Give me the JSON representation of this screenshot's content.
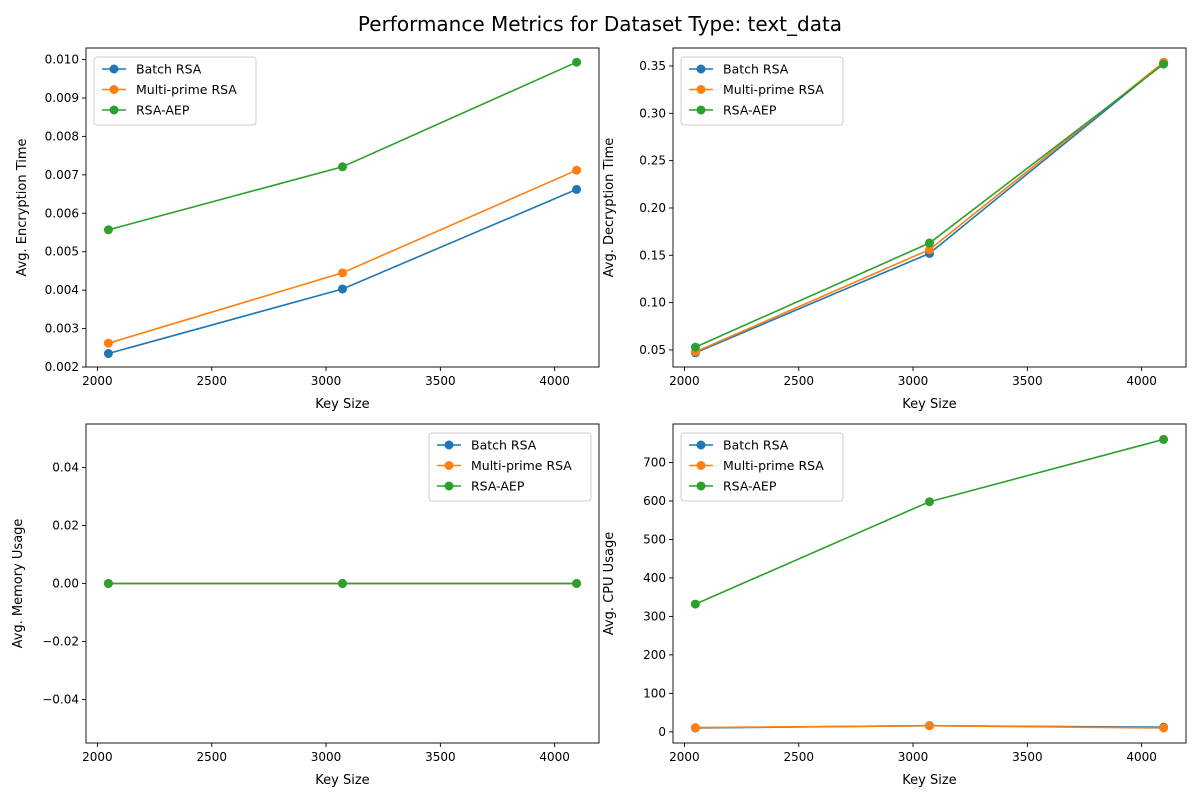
{
  "figure_title": "Performance Metrics for Dataset Type: text_data",
  "colors": {
    "Batch RSA": "#1f77b4",
    "Multi-prime RSA": "#ff7f0e",
    "RSA-AEP": "#2ca02c"
  },
  "chart_data": [
    {
      "type": "line",
      "xlabel": "Key Size",
      "ylabel": "Avg. Encryption Time",
      "x": [
        2048,
        3072,
        4096
      ],
      "xlim": [
        1950,
        4194
      ],
      "ylim": [
        0.002,
        0.0103
      ],
      "xticks": [
        2000,
        2500,
        3000,
        3500,
        4000
      ],
      "xtick_labels": [
        "2000",
        "2500",
        "3000",
        "3500",
        "4000"
      ],
      "yticks": [
        0.002,
        0.003,
        0.004,
        0.005,
        0.006,
        0.007,
        0.008,
        0.009,
        0.01
      ],
      "ytick_labels": [
        "0.002",
        "0.003",
        "0.004",
        "0.005",
        "0.006",
        "0.007",
        "0.008",
        "0.009",
        "0.010"
      ],
      "legend_position": "top-left",
      "grid": false,
      "series": [
        {
          "name": "Batch RSA",
          "values": [
            0.00235,
            0.00403,
            0.00662
          ]
        },
        {
          "name": "Multi-prime RSA",
          "values": [
            0.00262,
            0.00445,
            0.00712
          ]
        },
        {
          "name": "RSA-AEP",
          "values": [
            0.00557,
            0.00721,
            0.00993
          ]
        }
      ]
    },
    {
      "type": "line",
      "xlabel": "Key Size",
      "ylabel": "Avg. Decryption Time",
      "x": [
        2048,
        3072,
        4096
      ],
      "xlim": [
        1950,
        4194
      ],
      "ylim": [
        0.032,
        0.369
      ],
      "xticks": [
        2000,
        2500,
        3000,
        3500,
        4000
      ],
      "xtick_labels": [
        "2000",
        "2500",
        "3000",
        "3500",
        "4000"
      ],
      "yticks": [
        0.05,
        0.1,
        0.15,
        0.2,
        0.25,
        0.3,
        0.35
      ],
      "ytick_labels": [
        "0.05",
        "0.10",
        "0.15",
        "0.20",
        "0.25",
        "0.30",
        "0.35"
      ],
      "legend_position": "top-left",
      "grid": false,
      "series": [
        {
          "name": "Batch RSA",
          "values": [
            0.047,
            0.152,
            0.353
          ]
        },
        {
          "name": "Multi-prime RSA",
          "values": [
            0.048,
            0.156,
            0.354
          ]
        },
        {
          "name": "RSA-AEP",
          "values": [
            0.053,
            0.163,
            0.352
          ]
        }
      ]
    },
    {
      "type": "line",
      "xlabel": "Key Size",
      "ylabel": "Avg. Memory Usage",
      "x": [
        2048,
        3072,
        4096
      ],
      "xlim": [
        1950,
        4194
      ],
      "ylim": [
        -0.055,
        0.055
      ],
      "xticks": [
        2000,
        2500,
        3000,
        3500,
        4000
      ],
      "xtick_labels": [
        "2000",
        "2500",
        "3000",
        "3500",
        "4000"
      ],
      "yticks": [
        -0.04,
        -0.02,
        0.0,
        0.02,
        0.04
      ],
      "ytick_labels": [
        "−0.04",
        "−0.02",
        "0.00",
        "0.02",
        "0.04"
      ],
      "legend_position": "top-right",
      "grid": false,
      "series": [
        {
          "name": "Batch RSA",
          "values": [
            0,
            0,
            0
          ]
        },
        {
          "name": "Multi-prime RSA",
          "values": [
            0,
            0,
            0
          ]
        },
        {
          "name": "RSA-AEP",
          "values": [
            0,
            0,
            0
          ]
        }
      ]
    },
    {
      "type": "line",
      "xlabel": "Key Size",
      "ylabel": "Avg. CPU Usage",
      "x": [
        2048,
        3072,
        4096
      ],
      "xlim": [
        1950,
        4194
      ],
      "ylim": [
        -29,
        800
      ],
      "xticks": [
        2000,
        2500,
        3000,
        3500,
        4000
      ],
      "xtick_labels": [
        "2000",
        "2500",
        "3000",
        "3500",
        "4000"
      ],
      "yticks": [
        0,
        100,
        200,
        300,
        400,
        500,
        600,
        700
      ],
      "ytick_labels": [
        "0",
        "100",
        "200",
        "300",
        "400",
        "500",
        "600",
        "700"
      ],
      "legend_position": "top-left",
      "grid": false,
      "series": [
        {
          "name": "Batch RSA",
          "values": [
            10,
            16,
            12
          ]
        },
        {
          "name": "Multi-prime RSA",
          "values": [
            11,
            16,
            10
          ]
        },
        {
          "name": "RSA-AEP",
          "values": [
            332,
            598,
            760
          ]
        }
      ]
    }
  ]
}
